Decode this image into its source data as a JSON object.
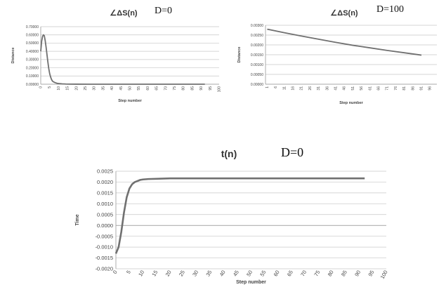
{
  "chart_data": [
    {
      "type": "line",
      "title": "∠ΔS(n)",
      "annotation": "D=0",
      "xlabel": "Step number",
      "ylabel": "Distance",
      "xlim": [
        0,
        100
      ],
      "ylim": [
        0,
        0.7
      ],
      "yticks": [
        "0.00000",
        "0.10000",
        "0.20000",
        "0.30000",
        "0.40000",
        "0.50000",
        "0.60000",
        "0.70000"
      ],
      "xticks": [
        "0",
        "5",
        "10",
        "15",
        "20",
        "25",
        "30",
        "35",
        "40",
        "45",
        "50",
        "55",
        "60",
        "65",
        "70",
        "75",
        "80",
        "85",
        "90",
        "95",
        "100"
      ],
      "series": [
        {
          "x": [
            0,
            0.5,
            1,
            1.5,
            2,
            2.5,
            3,
            3.5,
            4,
            4.5,
            5,
            5.5,
            6,
            6.5,
            7,
            8,
            9,
            10,
            12,
            14,
            16,
            20,
            30,
            40,
            60,
            80,
            92
          ],
          "values": [
            0.4,
            0.52,
            0.58,
            0.6,
            0.59,
            0.53,
            0.45,
            0.36,
            0.27,
            0.19,
            0.13,
            0.09,
            0.06,
            0.04,
            0.03,
            0.02,
            0.012,
            0.008,
            0.004,
            0.002,
            0.001,
            0.0005,
            0.0002,
            0.0001,
            0,
            0,
            0
          ]
        }
      ],
      "color": "#707070"
    },
    {
      "type": "line",
      "title": "∠ΔS(n)",
      "annotation": "D=100",
      "xlabel": "Step number",
      "ylabel": "Distance",
      "xlim": [
        0,
        100
      ],
      "ylim": [
        0,
        0.003
      ],
      "yticks": [
        "0.00000",
        "0.00050",
        "0.00100",
        "0.00150",
        "0.00200",
        "0.00250",
        "0.00300"
      ],
      "xticks": [
        "1",
        "6",
        "11",
        "16",
        "21",
        "26",
        "31",
        "36",
        "41",
        "46",
        "51",
        "56",
        "61",
        "66",
        "71",
        "76",
        "81",
        "86",
        "91",
        "96"
      ],
      "series": [
        {
          "x": [
            1,
            11,
            21,
            31,
            41,
            51,
            61,
            71,
            81,
            91
          ],
          "values": [
            0.0028,
            0.00262,
            0.00245,
            0.00229,
            0.00213,
            0.00198,
            0.00185,
            0.00172,
            0.0016,
            0.00148
          ]
        }
      ],
      "color": "#707070"
    },
    {
      "type": "line",
      "title": "t(n)",
      "annotation": "D=0",
      "xlabel": "Step number",
      "ylabel": "Time",
      "xlim": [
        0,
        100
      ],
      "ylim": [
        -0.002,
        0.0025
      ],
      "yticks": [
        "-0.0020",
        "-0.0015",
        "-0.0010",
        "-0.0005",
        "0.0000",
        "0.0005",
        "0.0010",
        "0.0015",
        "0.0020",
        "0.0025"
      ],
      "xticks": [
        "0",
        "5",
        "10",
        "15",
        "20",
        "25",
        "30",
        "35",
        "40",
        "45",
        "50",
        "55",
        "60",
        "65",
        "70",
        "75",
        "80",
        "85",
        "90",
        "95",
        "100"
      ],
      "series": [
        {
          "x": [
            0,
            1,
            2,
            3,
            4,
            5,
            6,
            7,
            8,
            9,
            10,
            12,
            15,
            20,
            30,
            50,
            70,
            92
          ],
          "values": [
            -0.0013,
            -0.001,
            -0.0003,
            0.0006,
            0.0013,
            0.0017,
            0.0019,
            0.002,
            0.00205,
            0.0021,
            0.00212,
            0.00214,
            0.00215,
            0.00217,
            0.00217,
            0.00217,
            0.00217,
            0.00217
          ]
        }
      ],
      "color": "#707070"
    }
  ]
}
